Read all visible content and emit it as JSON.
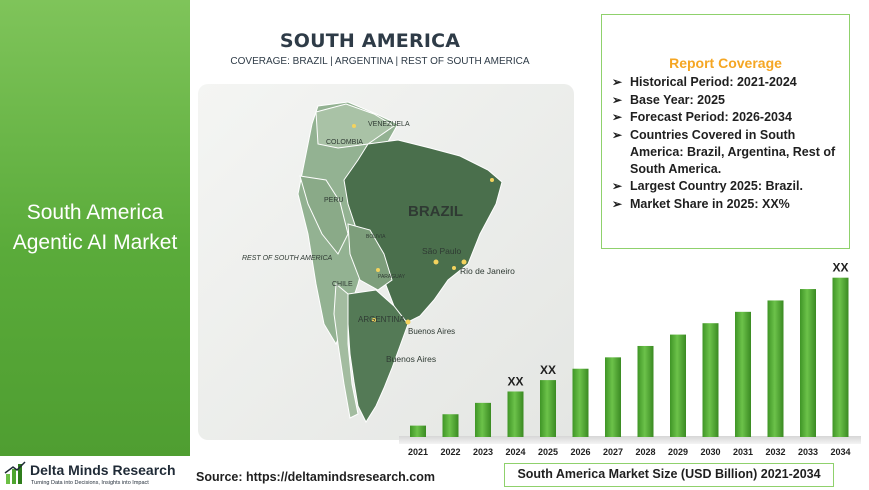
{
  "left_panel": {
    "title": "South America Agentic AI Market"
  },
  "map": {
    "title": "SOUTH AMERICA",
    "subtitle": "COVERAGE: BRAZIL | ARGENTINA | REST OF SOUTH AMERICA",
    "labels": {
      "venezuela": "VENEZUELA",
      "colombia": "COLOMBIA",
      "peru": "PERU",
      "brazil": "BRAZIL",
      "bolivia": "BOLIVIA",
      "paraguay": "PARAGUAY",
      "sao_paulo": "São Paulo",
      "rio": "Rio de Janeiro",
      "rest": "REST OF SOUTH AMERICA",
      "chile": "CHILE",
      "argentina": "ARGENTINA",
      "buenos_aires_1": "Buenos Aires",
      "buenos_aires_2": "Buenos Aires"
    },
    "colors": {
      "brazil": "#4a6f4c",
      "argentina": "#547a56",
      "rest": "#8fae8d",
      "highlight": "#f4d35e"
    }
  },
  "coverage": {
    "title": "Report Coverage",
    "items": [
      "Historical Period: 2021-2024",
      "Base Year: 2025",
      "Forecast Period: 2026-2034",
      "Countries Covered in South America: Brazil, Argentina, Rest of South America.",
      "Largest Country 2025: Brazil.",
      "Market Share in 2025: XX%"
    ]
  },
  "chart_data": {
    "type": "bar",
    "categories": [
      "2021",
      "2022",
      "2023",
      "2024",
      "2025",
      "2026",
      "2027",
      "2028",
      "2029",
      "2030",
      "2031",
      "2032",
      "2033",
      "2034"
    ],
    "values": [
      1,
      2,
      3,
      4,
      5,
      6,
      7,
      8,
      9,
      10,
      11,
      12,
      13,
      14
    ],
    "data_labels": [
      "",
      "",
      "",
      "XX",
      "XX",
      "",
      "",
      "",
      "",
      "",
      "",
      "",
      "",
      "XX"
    ],
    "title": "South America Market Size (USD Billion) 2021-2034",
    "xlabel": "",
    "ylabel": "",
    "ylim": [
      0,
      14.5
    ],
    "grid": false,
    "legend": "none",
    "bar_color": "#55ac37"
  },
  "footer": {
    "logo_name": "Delta Minds Research",
    "logo_tagline": "Turning Data into Decisions, Insights into Impact",
    "source": "Source: https://deltamindsresearch.com",
    "logo_icon": "bar-chart-logo-icon"
  }
}
